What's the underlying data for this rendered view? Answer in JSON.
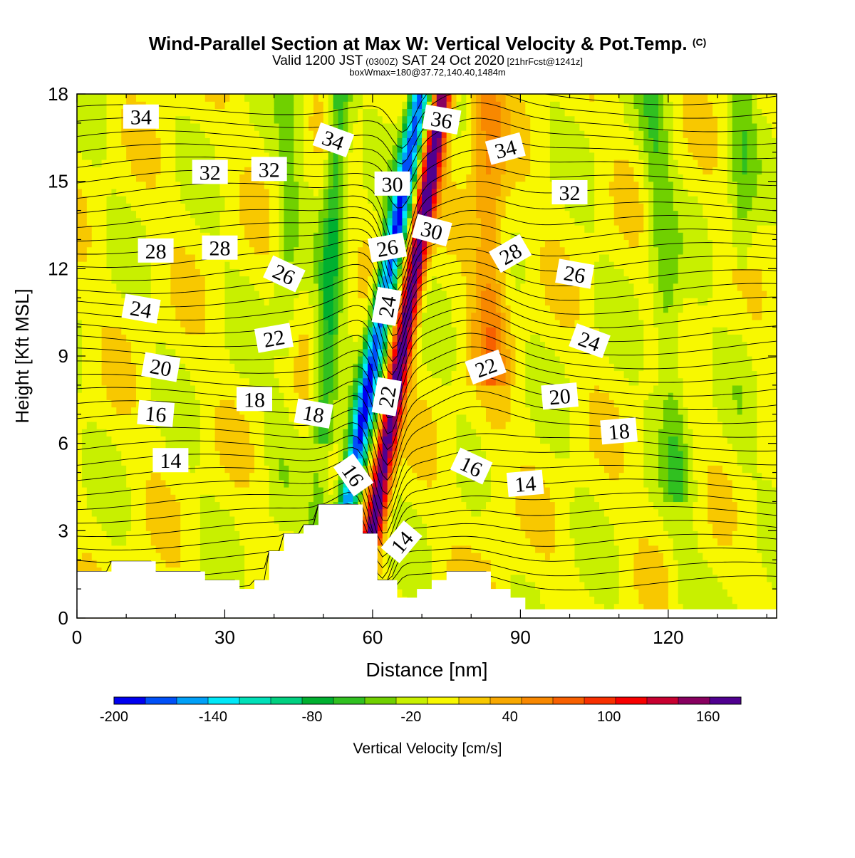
{
  "chart_data": {
    "type": "heatmap",
    "title": "Wind-Parallel Section at Max W: Vertical Velocity & Pot.Temp.",
    "title_mark": "(C)",
    "subtitle_parts": [
      "Valid 1200 JST",
      "(0300Z)",
      "SAT 24 Oct 2020",
      "[21hrFcst@1241z]"
    ],
    "subtitle2": "boxWmax=180@37.72,140.40,1484m",
    "xlabel": "Distance [nm]",
    "ylabel": "Height [Kft MSL]",
    "xlim": [
      0,
      142
    ],
    "ylim": [
      0,
      18
    ],
    "x_ticks": [
      0,
      30,
      60,
      90,
      120
    ],
    "y_ticks": [
      0,
      3,
      6,
      9,
      12,
      15,
      18
    ],
    "colorbar": {
      "label": "Vertical Velocity [cm/s]",
      "tick_labels": [
        "-200",
        "-140",
        "-80",
        "-20",
        "40",
        "100",
        "160"
      ],
      "tick_values": [
        -200,
        -140,
        -80,
        -20,
        40,
        100,
        160
      ],
      "boundaries": [
        -200,
        180
      ],
      "colors": [
        "#0000f0",
        "#0050f8",
        "#00a0f8",
        "#00e8f8",
        "#00e0b8",
        "#00d080",
        "#00b030",
        "#30c020",
        "#70d000",
        "#c8f000",
        "#f8f800",
        "#f8c800",
        "#f8a800",
        "#f88800",
        "#f86000",
        "#f83000",
        "#f80000",
        "#c80030",
        "#880060",
        "#500090"
      ]
    },
    "contour_labels": {
      "values": [
        "34",
        "32",
        "32",
        "34",
        "36",
        "34",
        "30",
        "32",
        "30",
        "28",
        "28",
        "26",
        "28",
        "26",
        "26",
        "24",
        "24",
        "24",
        "22",
        "22",
        "20",
        "22",
        "20",
        "18",
        "18",
        "18",
        "16",
        "16",
        "14",
        "16",
        "14",
        "14"
      ],
      "x": [
        13,
        27,
        39,
        52,
        74,
        87,
        64,
        100,
        72,
        16,
        29,
        42,
        88,
        63,
        101,
        13,
        63,
        104,
        40,
        83,
        17,
        63,
        98,
        36,
        48,
        110,
        16,
        56,
        19,
        80,
        91,
        66
      ],
      "y": [
        17.2,
        15.3,
        15.4,
        16.4,
        17.1,
        16.1,
        14.9,
        14.6,
        13.3,
        12.6,
        12.7,
        11.8,
        12.5,
        12.7,
        11.8,
        10.6,
        10.7,
        9.5,
        9.6,
        8.6,
        8.6,
        7.6,
        7.6,
        7.5,
        7.0,
        6.4,
        7.0,
        4.9,
        5.4,
        5.2,
        4.6,
        2.6
      ],
      "angles": [
        0,
        0,
        0,
        20,
        10,
        -15,
        0,
        0,
        15,
        0,
        0,
        25,
        -30,
        -10,
        10,
        10,
        -80,
        20,
        -10,
        -20,
        10,
        -80,
        -5,
        0,
        10,
        -5,
        5,
        55,
        0,
        25,
        -5,
        -50
      ]
    },
    "note": "Filled contours of vertical velocity with potential-temperature isolines (black), terrain masked in white"
  }
}
